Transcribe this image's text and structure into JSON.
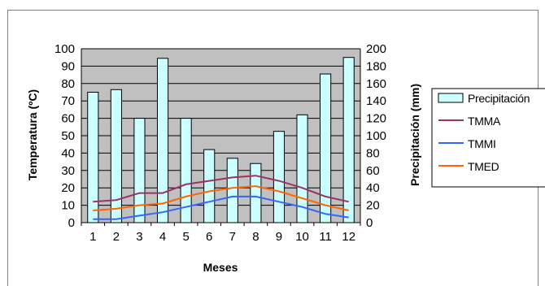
{
  "chart_data": {
    "type": "bar",
    "categories": [
      "1",
      "2",
      "3",
      "4",
      "5",
      "6",
      "7",
      "8",
      "9",
      "10",
      "11",
      "12"
    ],
    "xlabel": "Meses",
    "ylabel": "Temperatura (ºC)",
    "y2label": "Precipitación (mm)",
    "ylim": [
      0,
      100
    ],
    "y2lim": [
      0,
      200
    ],
    "yticks": [
      "0",
      "10",
      "20",
      "30",
      "40",
      "50",
      "60",
      "70",
      "80",
      "90",
      "100"
    ],
    "y2ticks": [
      "0",
      "20",
      "40",
      "60",
      "80",
      "100",
      "120",
      "140",
      "160",
      "180",
      "200"
    ],
    "grid": true,
    "legend_position": "right",
    "series": [
      {
        "name": "Precipitación",
        "kind": "bar",
        "axis": "right",
        "color": "#ccffff",
        "values": [
          150,
          153,
          120,
          189,
          120,
          84,
          74,
          68,
          105,
          124,
          171,
          190
        ]
      },
      {
        "name": "TMMA",
        "kind": "line",
        "axis": "left",
        "color": "#993366",
        "values": [
          12,
          13,
          17,
          17,
          22,
          24,
          26,
          27,
          24,
          20,
          15,
          12
        ]
      },
      {
        "name": "TMMI",
        "kind": "line",
        "axis": "left",
        "color": "#3366ff",
        "values": [
          2,
          2,
          4,
          6,
          9,
          12,
          15,
          15,
          12,
          9,
          5,
          3
        ]
      },
      {
        "name": "TMED",
        "kind": "line",
        "axis": "left",
        "color": "#ff6600",
        "values": [
          7,
          8,
          10,
          11,
          15,
          18,
          20,
          21,
          18,
          14,
          10,
          7
        ]
      }
    ],
    "plot_background": "#c0c0c0"
  }
}
